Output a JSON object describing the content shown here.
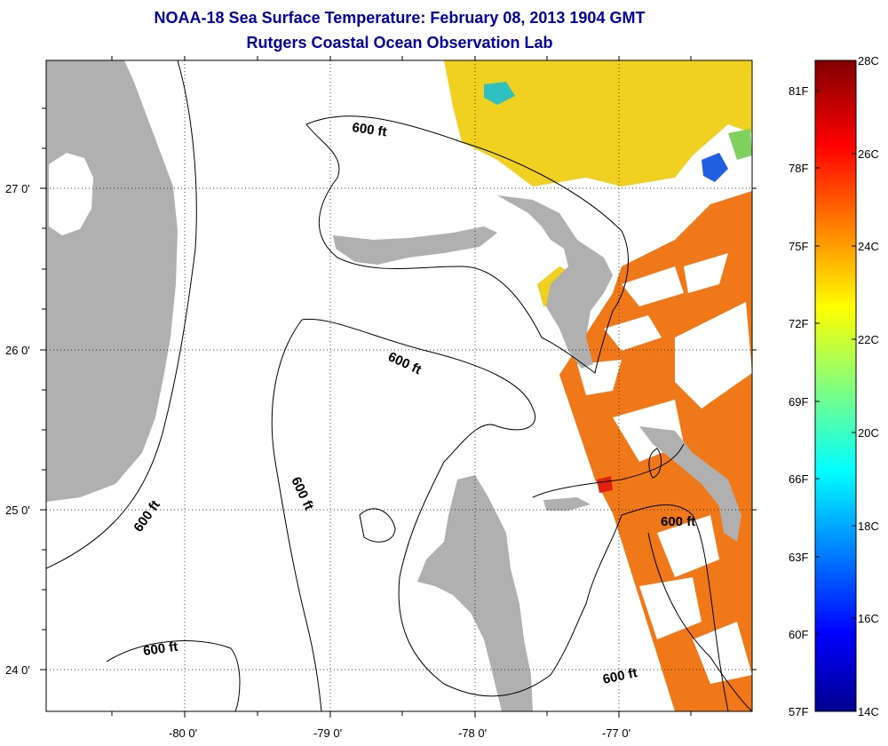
{
  "title": "NOAA-18 Sea Surface Temperature:  February 08, 2013 1904 GMT",
  "subtitle": "Rutgers Coastal Ocean Observation Lab",
  "map": {
    "lat_ticks": [
      "27 0'",
      "26 0'",
      "25 0'",
      "24 0'"
    ],
    "lon_ticks": [
      "-80 0'",
      "-79 0'",
      "-78 0'",
      "-77 0'"
    ],
    "contour_labels": [
      "600 ft",
      "600 ft",
      "600 ft",
      "600 ft",
      "600 ft",
      "600 ft"
    ],
    "colors": {
      "land": "#b0b0b0",
      "sst_warm": "#f07818",
      "sst_cool": "#f0d020",
      "cloud": "#ffffff"
    }
  },
  "colorbar": {
    "fahrenheit": [
      "81F",
      "78F",
      "75F",
      "72F",
      "69F",
      "66F",
      "63F",
      "60F",
      "57F"
    ],
    "celsius": [
      "28C",
      "26C",
      "24C",
      "22C",
      "20C",
      "18C",
      "16C",
      "14C"
    ],
    "range_c": [
      14,
      28
    ]
  }
}
